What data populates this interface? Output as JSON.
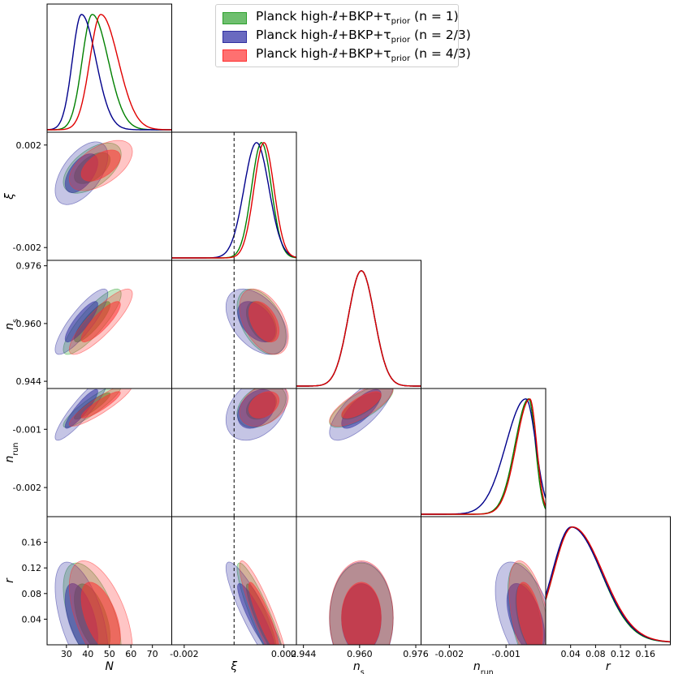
{
  "chart_data": {
    "type": "triangle-corner-plot",
    "parameters": [
      {
        "key": "N",
        "label": "N",
        "ticks": [
          30,
          40,
          50,
          60,
          70
        ],
        "tick_labels": [
          "30",
          "40",
          "50",
          "60",
          "70"
        ],
        "range": [
          21,
          79
        ]
      },
      {
        "key": "xi",
        "label": "ξ",
        "ticks": [
          -0.002,
          0.002
        ],
        "tick_labels": [
          "-0.002",
          "0.002"
        ],
        "range": [
          -0.0025,
          0.0025
        ],
        "marker": 0.0
      },
      {
        "key": "ns",
        "label": "n_s",
        "ticks": [
          0.944,
          0.96,
          0.976
        ],
        "tick_labels": [
          "0.944",
          "0.960",
          "0.976"
        ],
        "range": [
          0.942,
          0.9775
        ]
      },
      {
        "key": "nrun",
        "label": "n_run",
        "ticks": [
          -0.002,
          -0.001
        ],
        "tick_labels": [
          "-0.002",
          "-0.001"
        ],
        "range": [
          -0.0025,
          -0.0003
        ]
      },
      {
        "key": "r",
        "label": "r",
        "ticks": [
          0.04,
          0.08,
          0.12,
          0.16
        ],
        "tick_labels": [
          "0.04",
          "0.08",
          "0.12",
          "0.16"
        ],
        "range": [
          0.0,
          0.2
        ]
      }
    ],
    "series": [
      {
        "name": "Planck high-ℓ+BKP+τ_prior (n=1)",
        "legend_main": "Planck high-ℓ+BKP+τ",
        "legend_sub": "prior",
        "legend_suffix": " (n = 1)",
        "color": "#008000",
        "fill": "#2ca02c",
        "means": {
          "N": 42,
          "xi": 0.0011,
          "ns": 0.9605,
          "nrun": -0.0006,
          "r": 0.042
        },
        "sigmas": {
          "N": 5.5,
          "xi": 0.0004,
          "ns": 0.0037,
          "nrun": 0.00015,
          "r": 0.035
        }
      },
      {
        "name": "Planck high-ℓ+BKP+τ_prior (n=2/3)",
        "legend_main": "Planck high-ℓ+BKP+τ",
        "legend_sub": "prior",
        "legend_suffix": " (n = 2/3)",
        "color": "#00008b",
        "fill": "#3030a0",
        "means": {
          "N": 37,
          "xi": 0.0009,
          "ns": 0.9605,
          "nrun": -0.00065,
          "r": 0.041
        },
        "sigmas": {
          "N": 5.0,
          "xi": 0.0005,
          "ns": 0.0037,
          "nrun": 0.00022,
          "r": 0.036
        }
      },
      {
        "name": "Planck high-ℓ+BKP+τ_prior (n=4/3)",
        "legend_main": "Planck high-ℓ+BKP+τ",
        "legend_sub": "prior",
        "legend_suffix": " (n = 4/3)",
        "color": "#e00000",
        "fill": "#ff3030",
        "means": {
          "N": 46,
          "xi": 0.0012,
          "ns": 0.9605,
          "nrun": -0.00058,
          "r": 0.043
        },
        "sigmas": {
          "N": 6.0,
          "xi": 0.0004,
          "ns": 0.0037,
          "nrun": 0.00015,
          "r": 0.036
        }
      }
    ],
    "correlations": {
      "xi|N": 0.55,
      "ns|N": 0.85,
      "nrun|N": 0.9,
      "r|N": -0.55,
      "ns|xi": -0.45,
      "nrun|xi": 0.35,
      "r|xi": -0.9,
      "nrun|ns": 0.75,
      "r|ns": 0.0,
      "r|nrun": -0.5
    },
    "contour_levels": [
      "68%",
      "95%"
    ],
    "legend_position": "top-right"
  }
}
